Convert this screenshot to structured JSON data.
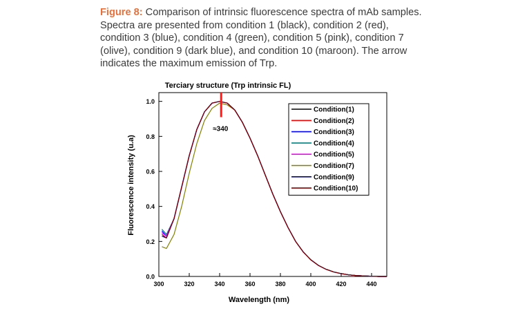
{
  "caption": {
    "label": "Figure 8:",
    "text": " Comparison of intrinsic fluorescence spectra of mAb samples. Spectra are presented from condition 1 (black), condition 2 (red), condition 3 (blue), condition 4 (green), condition 5 (pink), condition 7 (olive), condition 9 (dark blue), and condition 10 (maroon). The arrow indicates the maximum emission of Trp."
  },
  "chart_data": {
    "type": "line",
    "title": "Terciary structure (Trp intrinsic FL)",
    "xlabel": "Wavelength (nm)",
    "ylabel": "Fluorescence intensity (u.a)",
    "xlim": [
      300,
      450
    ],
    "ylim": [
      0.0,
      1.05
    ],
    "xticks": [
      "300",
      "320",
      "340",
      "360",
      "380",
      "400",
      "420",
      "440"
    ],
    "yticks": [
      "0.0",
      "0.2",
      "0.4",
      "0.6",
      "0.8",
      "1.0"
    ],
    "legend_position": "top-right",
    "annotation": {
      "text": "≈340",
      "x": 341
    },
    "x": [
      302,
      305,
      310,
      315,
      320,
      325,
      330,
      335,
      340,
      345,
      350,
      355,
      360,
      365,
      370,
      375,
      380,
      385,
      390,
      395,
      400,
      405,
      410,
      415,
      420,
      425,
      430,
      435,
      440,
      445,
      450
    ],
    "series": [
      {
        "name": "Condition(1)",
        "color": "#000000",
        "values": [
          0.25,
          0.23,
          0.33,
          0.51,
          0.69,
          0.84,
          0.94,
          0.99,
          1.0,
          0.99,
          0.95,
          0.88,
          0.79,
          0.69,
          0.58,
          0.47,
          0.37,
          0.28,
          0.2,
          0.14,
          0.095,
          0.063,
          0.041,
          0.026,
          0.016,
          0.009,
          0.005,
          0.003,
          0.001,
          0.0,
          0.0
        ]
      },
      {
        "name": "Condition(2)",
        "color": "#ff0000",
        "values": [
          0.25,
          0.23,
          0.33,
          0.51,
          0.69,
          0.84,
          0.94,
          0.99,
          1.0,
          0.99,
          0.95,
          0.88,
          0.79,
          0.69,
          0.58,
          0.47,
          0.37,
          0.28,
          0.2,
          0.14,
          0.095,
          0.063,
          0.041,
          0.026,
          0.016,
          0.009,
          0.005,
          0.003,
          0.001,
          0.0,
          0.0
        ]
      },
      {
        "name": "Condition(3)",
        "color": "#0000ff",
        "values": [
          0.26,
          0.23,
          0.33,
          0.51,
          0.69,
          0.84,
          0.94,
          0.99,
          1.0,
          0.99,
          0.95,
          0.88,
          0.79,
          0.69,
          0.58,
          0.47,
          0.37,
          0.28,
          0.2,
          0.14,
          0.095,
          0.063,
          0.041,
          0.026,
          0.016,
          0.009,
          0.005,
          0.003,
          0.001,
          0.0,
          0.0
        ]
      },
      {
        "name": "Condition(4)",
        "color": "#008080",
        "values": [
          0.27,
          0.24,
          0.33,
          0.51,
          0.69,
          0.84,
          0.94,
          0.99,
          1.0,
          0.99,
          0.95,
          0.88,
          0.79,
          0.69,
          0.58,
          0.47,
          0.37,
          0.28,
          0.2,
          0.14,
          0.095,
          0.063,
          0.041,
          0.026,
          0.016,
          0.009,
          0.005,
          0.003,
          0.001,
          0.0,
          0.0
        ]
      },
      {
        "name": "Condition(5)",
        "color": "#ff00ff",
        "values": [
          0.25,
          0.23,
          0.33,
          0.51,
          0.69,
          0.84,
          0.94,
          0.99,
          1.0,
          0.99,
          0.95,
          0.88,
          0.79,
          0.69,
          0.58,
          0.47,
          0.37,
          0.28,
          0.2,
          0.14,
          0.095,
          0.063,
          0.041,
          0.026,
          0.016,
          0.009,
          0.005,
          0.003,
          0.001,
          0.0,
          0.0
        ]
      },
      {
        "name": "Condition(7)",
        "color": "#808000",
        "values": [
          0.17,
          0.16,
          0.24,
          0.4,
          0.59,
          0.76,
          0.89,
          0.96,
          0.99,
          0.98,
          0.95,
          0.88,
          0.79,
          0.69,
          0.58,
          0.47,
          0.37,
          0.28,
          0.2,
          0.14,
          0.095,
          0.063,
          0.041,
          0.026,
          0.016,
          0.009,
          0.005,
          0.003,
          0.001,
          0.0,
          0.0
        ]
      },
      {
        "name": "Condition(9)",
        "color": "#000080",
        "values": [
          0.23,
          0.22,
          0.33,
          0.51,
          0.69,
          0.84,
          0.94,
          0.99,
          1.0,
          0.99,
          0.95,
          0.88,
          0.79,
          0.69,
          0.58,
          0.47,
          0.37,
          0.28,
          0.2,
          0.14,
          0.095,
          0.063,
          0.041,
          0.026,
          0.016,
          0.009,
          0.005,
          0.003,
          0.001,
          0.0,
          0.0
        ]
      },
      {
        "name": "Condition(10)",
        "color": "#800000",
        "values": [
          0.24,
          0.22,
          0.33,
          0.51,
          0.69,
          0.84,
          0.94,
          0.99,
          1.0,
          0.99,
          0.95,
          0.88,
          0.79,
          0.69,
          0.58,
          0.47,
          0.37,
          0.28,
          0.2,
          0.14,
          0.095,
          0.063,
          0.041,
          0.026,
          0.016,
          0.009,
          0.005,
          0.003,
          0.001,
          0.0,
          0.0
        ]
      }
    ]
  }
}
